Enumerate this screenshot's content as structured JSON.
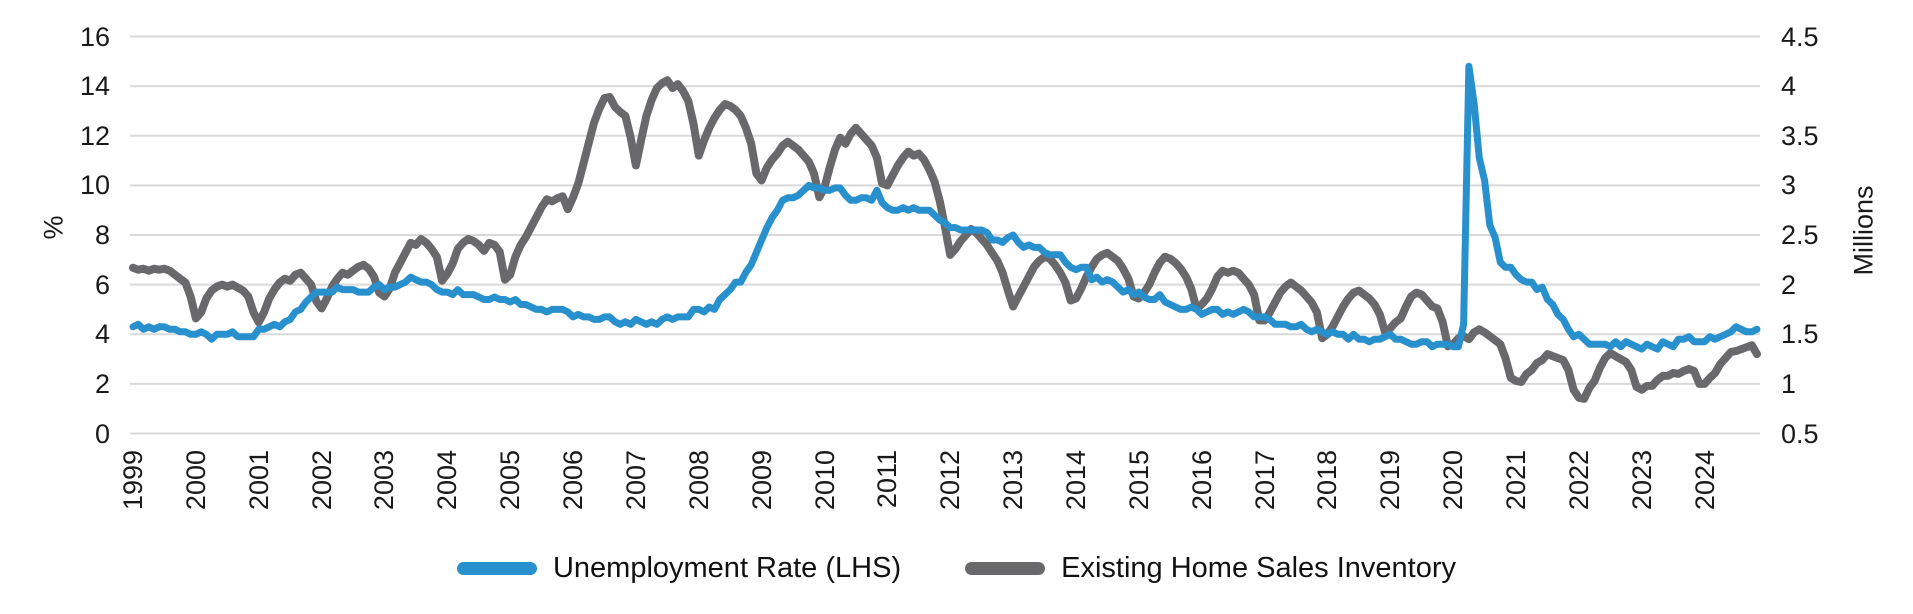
{
  "page": {
    "background": "#FFFFFF"
  },
  "colors": {
    "unemployment_line": "#2990CE",
    "inventory_line": "#69696C",
    "gridline": "#D9D9D9",
    "text": "#1A1A1A"
  },
  "axes": {
    "left": {
      "title": "%"
    },
    "right": {
      "title": "Millions"
    }
  },
  "legend": [
    {
      "label": "Unemployment Rate (LHS)",
      "color": "#2990CE"
    },
    {
      "label": "Existing Home Sales Inventory",
      "color": "#69696C"
    }
  ],
  "chart_data": {
    "type": "line",
    "title": "",
    "x_frequency": "monthly",
    "x_start": "1999-01",
    "x_end": "2024-11",
    "grid": "horizontal",
    "legend_position": "bottom",
    "left_axis": {
      "label": "%",
      "min": 0,
      "max": 16,
      "tick_values": [
        16,
        14,
        12,
        10,
        8,
        6,
        4,
        2,
        0
      ],
      "tick_labels": [
        "16",
        "14",
        "12",
        "10",
        "8",
        "6",
        "4",
        "2",
        "0"
      ]
    },
    "right_axis": {
      "label": "Millions",
      "min": 0.5,
      "max": 4.5,
      "tick_values": [
        4.5,
        4,
        3.5,
        3,
        2.5,
        2,
        1.5,
        1,
        0.5
      ],
      "tick_labels": [
        "4.5",
        "4",
        "3.5",
        "3",
        "2.5",
        "2",
        "1.5",
        "1",
        "0.5"
      ]
    },
    "x_axis": {
      "year_labels": [
        "1999",
        "2000",
        "2001",
        "2002",
        "2003",
        "2004",
        "2005",
        "2006",
        "2007",
        "2008",
        "2009",
        "2010",
        "2011",
        "2012",
        "2013",
        "2014",
        "2015",
        "2016",
        "2017",
        "2018",
        "2019",
        "2020",
        "2021",
        "2022",
        "2023",
        "2024"
      ]
    },
    "series": [
      {
        "name": "Unemployment Rate (LHS)",
        "axis": "left",
        "unit": "%",
        "color": "#2990CE",
        "values": [
          4.3,
          4.4,
          4.2,
          4.3,
          4.2,
          4.3,
          4.3,
          4.2,
          4.2,
          4.1,
          4.1,
          4.0,
          4.0,
          4.1,
          4.0,
          3.8,
          4.0,
          4.0,
          4.0,
          4.1,
          3.9,
          3.9,
          3.9,
          3.9,
          4.2,
          4.2,
          4.3,
          4.4,
          4.3,
          4.5,
          4.6,
          4.9,
          5.0,
          5.3,
          5.5,
          5.7,
          5.7,
          5.7,
          5.7,
          5.9,
          5.8,
          5.8,
          5.8,
          5.7,
          5.7,
          5.7,
          5.9,
          6.0,
          5.8,
          5.9,
          5.9,
          6.0,
          6.1,
          6.3,
          6.2,
          6.1,
          6.1,
          6.0,
          5.8,
          5.7,
          5.7,
          5.6,
          5.8,
          5.6,
          5.6,
          5.6,
          5.5,
          5.4,
          5.4,
          5.5,
          5.4,
          5.4,
          5.3,
          5.4,
          5.2,
          5.2,
          5.1,
          5.0,
          5.0,
          4.9,
          5.0,
          5.0,
          5.0,
          4.9,
          4.7,
          4.8,
          4.7,
          4.7,
          4.6,
          4.6,
          4.7,
          4.7,
          4.5,
          4.4,
          4.5,
          4.4,
          4.6,
          4.5,
          4.4,
          4.5,
          4.4,
          4.6,
          4.7,
          4.6,
          4.7,
          4.7,
          4.7,
          5.0,
          5.0,
          4.9,
          5.1,
          5.0,
          5.4,
          5.6,
          5.8,
          6.1,
          6.1,
          6.5,
          6.8,
          7.3,
          7.8,
          8.3,
          8.7,
          9.0,
          9.4,
          9.5,
          9.5,
          9.6,
          9.8,
          10.0,
          9.9,
          9.9,
          9.8,
          9.8,
          9.9,
          9.9,
          9.6,
          9.4,
          9.4,
          9.5,
          9.5,
          9.4,
          9.8,
          9.3,
          9.1,
          9.0,
          9.0,
          9.1,
          9.0,
          9.1,
          9.0,
          9.0,
          9.0,
          8.8,
          8.6,
          8.5,
          8.3,
          8.3,
          8.2,
          8.2,
          8.2,
          8.2,
          8.2,
          8.1,
          7.8,
          7.8,
          7.7,
          7.9,
          8.0,
          7.7,
          7.5,
          7.6,
          7.5,
          7.5,
          7.3,
          7.2,
          7.2,
          7.2,
          6.9,
          6.7,
          6.6,
          6.7,
          6.7,
          6.2,
          6.3,
          6.1,
          6.2,
          6.1,
          5.9,
          5.7,
          5.8,
          5.6,
          5.7,
          5.5,
          5.4,
          5.4,
          5.6,
          5.3,
          5.2,
          5.1,
          5.0,
          5.0,
          5.1,
          5.0,
          4.8,
          4.9,
          5.0,
          5.0,
          4.8,
          4.9,
          4.8,
          4.9,
          5.0,
          4.9,
          4.7,
          4.7,
          4.7,
          4.6,
          4.4,
          4.4,
          4.4,
          4.3,
          4.3,
          4.4,
          4.2,
          4.1,
          4.2,
          4.1,
          4.0,
          4.1,
          4.0,
          4.0,
          3.8,
          4.0,
          3.8,
          3.8,
          3.7,
          3.8,
          3.8,
          3.9,
          4.0,
          3.8,
          3.8,
          3.7,
          3.6,
          3.6,
          3.7,
          3.7,
          3.5,
          3.6,
          3.6,
          3.6,
          3.5,
          3.5,
          4.4,
          14.8,
          13.3,
          11.1,
          10.2,
          8.4,
          7.9,
          6.9,
          6.7,
          6.7,
          6.4,
          6.2,
          6.1,
          6.1,
          5.8,
          5.9,
          5.4,
          5.2,
          4.8,
          4.6,
          4.2,
          3.9,
          4.0,
          3.8,
          3.6,
          3.6,
          3.6,
          3.6,
          3.5,
          3.7,
          3.5,
          3.7,
          3.6,
          3.5,
          3.4,
          3.6,
          3.5,
          3.4,
          3.7,
          3.6,
          3.5,
          3.8,
          3.8,
          3.9,
          3.7,
          3.7,
          3.7,
          3.9,
          3.8,
          3.9,
          4.0,
          4.1,
          4.3,
          4.2,
          4.1,
          4.1,
          4.2
        ]
      },
      {
        "name": "Existing Home Sales Inventory",
        "axis": "right",
        "unit": "millions",
        "color": "#69696C",
        "values": [
          2.17,
          2.15,
          2.16,
          2.14,
          2.16,
          2.15,
          2.16,
          2.14,
          2.1,
          2.06,
          2.02,
          1.88,
          1.66,
          1.72,
          1.86,
          1.94,
          1.98,
          2.0,
          1.98,
          2.0,
          1.97,
          1.94,
          1.88,
          1.72,
          1.62,
          1.72,
          1.86,
          1.95,
          2.02,
          2.06,
          2.04,
          2.1,
          2.12,
          2.06,
          2.0,
          1.83,
          1.76,
          1.86,
          1.98,
          2.06,
          2.12,
          2.1,
          2.14,
          2.18,
          2.2,
          2.16,
          2.08,
          1.92,
          1.88,
          1.96,
          2.12,
          2.22,
          2.32,
          2.42,
          2.4,
          2.46,
          2.42,
          2.36,
          2.28,
          2.04,
          2.11,
          2.21,
          2.36,
          2.42,
          2.46,
          2.44,
          2.4,
          2.34,
          2.42,
          2.4,
          2.33,
          2.05,
          2.1,
          2.28,
          2.4,
          2.48,
          2.58,
          2.68,
          2.78,
          2.86,
          2.84,
          2.87,
          2.89,
          2.76,
          2.88,
          3.02,
          3.22,
          3.43,
          3.63,
          3.77,
          3.88,
          3.89,
          3.79,
          3.74,
          3.7,
          3.48,
          3.2,
          3.46,
          3.7,
          3.86,
          3.98,
          4.03,
          4.06,
          3.98,
          4.02,
          3.95,
          3.85,
          3.62,
          3.3,
          3.45,
          3.58,
          3.68,
          3.76,
          3.82,
          3.8,
          3.76,
          3.7,
          3.58,
          3.42,
          3.12,
          3.05,
          3.18,
          3.26,
          3.32,
          3.4,
          3.44,
          3.4,
          3.36,
          3.3,
          3.24,
          3.12,
          2.88,
          2.98,
          3.18,
          3.36,
          3.48,
          3.42,
          3.52,
          3.58,
          3.52,
          3.46,
          3.4,
          3.28,
          3.02,
          3.0,
          3.1,
          3.2,
          3.28,
          3.34,
          3.3,
          3.32,
          3.26,
          3.16,
          3.04,
          2.84,
          2.58,
          2.3,
          2.36,
          2.44,
          2.5,
          2.56,
          2.52,
          2.46,
          2.4,
          2.32,
          2.24,
          2.12,
          1.94,
          1.78,
          1.88,
          1.98,
          2.08,
          2.18,
          2.24,
          2.28,
          2.26,
          2.2,
          2.12,
          2.02,
          1.84,
          1.86,
          1.96,
          2.08,
          2.18,
          2.26,
          2.3,
          2.32,
          2.28,
          2.24,
          2.16,
          2.06,
          1.88,
          1.86,
          1.92,
          2.0,
          2.12,
          2.22,
          2.28,
          2.26,
          2.22,
          2.16,
          2.08,
          1.96,
          1.76,
          1.8,
          1.86,
          1.96,
          2.08,
          2.14,
          2.12,
          2.14,
          2.12,
          2.06,
          2.0,
          1.9,
          1.64,
          1.64,
          1.72,
          1.82,
          1.92,
          1.98,
          2.02,
          1.98,
          1.94,
          1.88,
          1.82,
          1.72,
          1.46,
          1.5,
          1.58,
          1.68,
          1.78,
          1.86,
          1.92,
          1.94,
          1.9,
          1.86,
          1.8,
          1.7,
          1.52,
          1.56,
          1.62,
          1.66,
          1.78,
          1.88,
          1.92,
          1.9,
          1.84,
          1.78,
          1.76,
          1.62,
          1.38,
          1.4,
          1.46,
          1.48,
          1.45,
          1.52,
          1.55,
          1.52,
          1.48,
          1.44,
          1.4,
          1.26,
          1.06,
          1.03,
          1.02,
          1.1,
          1.14,
          1.21,
          1.24,
          1.3,
          1.28,
          1.26,
          1.24,
          1.14,
          0.94,
          0.86,
          0.85,
          0.96,
          1.03,
          1.16,
          1.26,
          1.31,
          1.28,
          1.25,
          1.22,
          1.14,
          0.97,
          0.94,
          0.98,
          0.98,
          1.04,
          1.08,
          1.08,
          1.11,
          1.1,
          1.13,
          1.15,
          1.13,
          1.0,
          1.0,
          1.06,
          1.11,
          1.2,
          1.26,
          1.32,
          1.33,
          1.35,
          1.37,
          1.39,
          1.3
        ]
      }
    ]
  }
}
